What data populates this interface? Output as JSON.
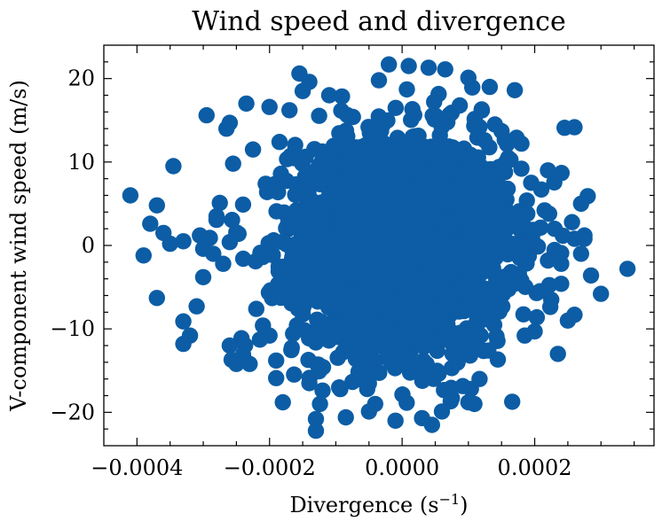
{
  "chart_data": {
    "type": "scatter",
    "title": "Wind speed and divergence",
    "xlabel": "Divergence (s",
    "xlabel_superscript": "−1",
    "xlabel_suffix": ")",
    "ylabel": "V-component wind speed (m/s)",
    "xlim": [
      -0.00045,
      0.00038
    ],
    "ylim": [
      -24,
      24
    ],
    "xticks": [
      -0.0004,
      -0.0002,
      0.0,
      0.0002
    ],
    "xtick_labels": [
      "−0.0004",
      "−0.0002",
      "0.0000",
      "0.0002"
    ],
    "yticks": [
      -20,
      -10,
      0,
      10,
      20
    ],
    "ytick_labels": [
      "−20",
      "−10",
      "0",
      "10",
      "20"
    ],
    "grid": false,
    "marker_color": "#0c5da5",
    "core_distribution": {
      "x_center": 0.0,
      "x_std": 8e-05,
      "y_center": 0.0,
      "y_std": 6.5,
      "n": 2500
    },
    "points": [
      [
        -0.00041,
        6.0
      ],
      [
        -0.00039,
        -1.2
      ],
      [
        -0.00038,
        2.6
      ],
      [
        -0.00037,
        4.8
      ],
      [
        -0.00037,
        -6.3
      ],
      [
        -0.00036,
        1.5
      ],
      [
        -0.00035,
        0.2
      ],
      [
        -0.000345,
        9.5
      ],
      [
        -0.00033,
        0.5
      ],
      [
        -0.00033,
        -9.1
      ],
      [
        -0.00033,
        -11.8
      ],
      [
        -0.00032,
        -10.8
      ],
      [
        -0.00031,
        -7.3
      ],
      [
        -0.000305,
        1.2
      ],
      [
        -0.0003,
        -0.4
      ],
      [
        -0.0003,
        -3.8
      ],
      [
        -0.000295,
        15.6
      ],
      [
        -0.00029,
        0.9
      ],
      [
        -0.000285,
        -1.0
      ],
      [
        -0.00028,
        3.5
      ],
      [
        -0.000275,
        5.1
      ],
      [
        -0.00027,
        -2.2
      ],
      [
        -0.000265,
        14.0
      ],
      [
        -0.00026,
        14.7
      ],
      [
        -0.00026,
        -12.0
      ],
      [
        -0.000255,
        9.8
      ],
      [
        -0.00025,
        -14.2
      ],
      [
        -0.00024,
        -13.1
      ],
      [
        -0.000235,
        17.0
      ],
      [
        -0.00023,
        -14.2
      ],
      [
        -0.000225,
        11.5
      ],
      [
        -0.00022,
        -7.6
      ],
      [
        -0.00021,
        -9.6
      ],
      [
        -0.0002,
        16.6
      ],
      [
        -0.0002,
        -10.8
      ],
      [
        -0.00019,
        -15.9
      ],
      [
        -0.00019,
        -13.8
      ],
      [
        -0.000185,
        12.4
      ],
      [
        -0.00018,
        -18.8
      ],
      [
        -0.00017,
        16.2
      ],
      [
        -0.000155,
        20.6
      ],
      [
        -0.00015,
        18.5
      ],
      [
        -0.00014,
        19.6
      ],
      [
        -0.00014,
        -16.5
      ],
      [
        -0.00013,
        -20.8
      ],
      [
        -0.00013,
        -22.2
      ],
      [
        -0.00012,
        -17.4
      ],
      [
        -0.00011,
        18.0
      ],
      [
        -8.5e-05,
        -20.6
      ],
      [
        -5e-05,
        -19.9
      ],
      [
        -3.5e-05,
        19.8
      ],
      [
        -2e-05,
        21.7
      ],
      [
        -1e-05,
        -21.0
      ],
      [
        1e-05,
        21.5
      ],
      [
        3e-05,
        -20.7
      ],
      [
        4e-05,
        21.3
      ],
      [
        4.5e-05,
        -21.5
      ],
      [
        6e-05,
        -19.9
      ],
      [
        6.5e-05,
        21.1
      ],
      [
        7.5e-05,
        -18.3
      ],
      [
        0.0001,
        20.1
      ],
      [
        0.0001,
        -18.8
      ],
      [
        0.00012,
        16.3
      ],
      [
        0.00013,
        -12.6
      ],
      [
        0.00014,
        14.5
      ],
      [
        0.00015,
        13.7
      ],
      [
        0.00016,
        10.5
      ],
      [
        0.00017,
        18.6
      ],
      [
        0.00018,
        12.2
      ],
      [
        0.00018,
        9.2
      ],
      [
        0.000185,
        -10.8
      ],
      [
        0.0002,
        -10.3
      ],
      [
        0.00021,
        6.7
      ],
      [
        0.000215,
        4.2
      ],
      [
        0.00022,
        -1.8
      ],
      [
        0.000225,
        -6.5
      ],
      [
        0.00023,
        2.0
      ],
      [
        0.000235,
        -13.0
      ],
      [
        0.00024,
        -4.6
      ],
      [
        0.000245,
        14.1
      ],
      [
        0.00025,
        -9.0
      ],
      [
        0.00026,
        0.8
      ],
      [
        0.00026,
        -8.3
      ],
      [
        0.00027,
        5.0
      ],
      [
        0.00027,
        -1.0
      ],
      [
        0.000275,
        1.2
      ],
      [
        0.00028,
        5.9
      ],
      [
        0.000285,
        -3.6
      ],
      [
        0.0003,
        -5.8
      ],
      [
        0.00034,
        -2.8
      ],
      [
        0.000275,
        0.8
      ],
      [
        -0.00026,
        0.4
      ],
      [
        -0.00024,
        4.9
      ],
      [
        0.00024,
        -2.2
      ],
      [
        0.00022,
        9.0
      ]
    ]
  }
}
